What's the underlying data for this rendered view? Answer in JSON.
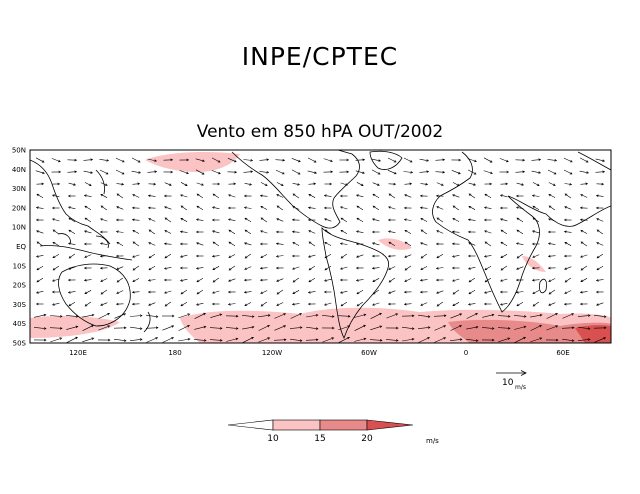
{
  "header": {
    "title": "INPE/CPTEC",
    "subtitle": "Vento em 850 hPA OUT/2002"
  },
  "map": {
    "lat_labels": [
      "50N",
      "40N",
      "30N",
      "20N",
      "10N",
      "EQ",
      "10S",
      "20S",
      "30S",
      "40S",
      "50S"
    ],
    "lon_labels": [
      "120E",
      "180",
      "120W",
      "60W",
      "0",
      "60E"
    ],
    "reference_vector": {
      "value": "10",
      "unit": "m/s"
    }
  },
  "legend": {
    "levels": [
      "10",
      "15",
      "20"
    ],
    "unit": "m/s",
    "colors": [
      "#ffffff",
      "#fbc3c3",
      "#e88a8a",
      "#d95050"
    ]
  },
  "colors": {
    "shade_light": "#fbc3c3",
    "shade_mid": "#e88a8a",
    "land_line": "#000000"
  }
}
